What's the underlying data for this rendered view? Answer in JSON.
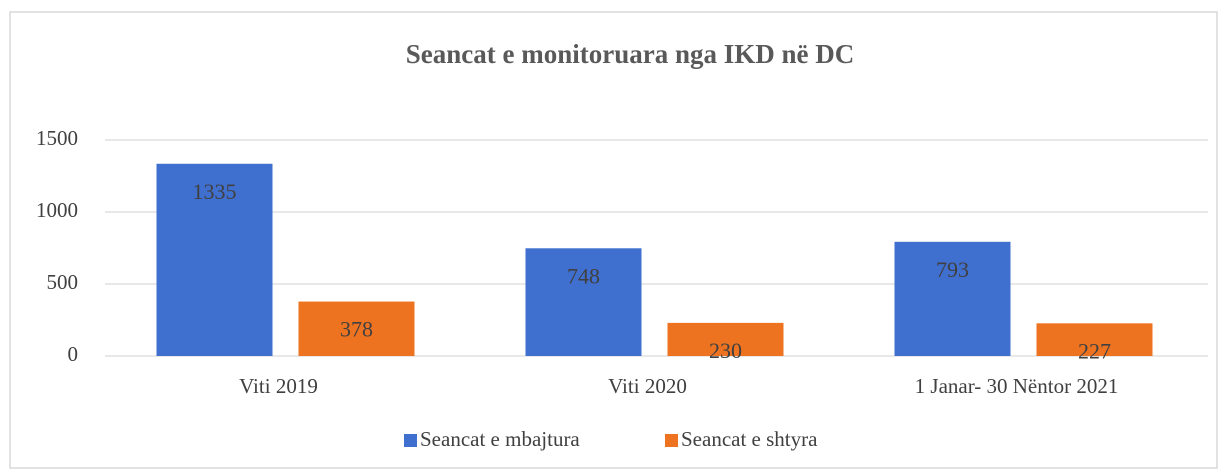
{
  "chart_data": {
    "type": "bar",
    "title": "Seancat e monitoruara nga IKD në DC",
    "categories": [
      "Viti 2019",
      "Viti 2020",
      "1 Janar- 30 Nëntor 2021"
    ],
    "series": [
      {
        "name": "Seancat e mbajtura",
        "color": "#3f6fcf",
        "values": [
          1335,
          748,
          793
        ]
      },
      {
        "name": "Seancat e shtyra",
        "color": "#ee7321",
        "values": [
          378,
          230,
          227
        ]
      }
    ],
    "ylim": [
      0,
      1500
    ],
    "yticks": [
      0,
      500,
      1000,
      1500
    ],
    "grid": true,
    "legend": "bottom"
  }
}
